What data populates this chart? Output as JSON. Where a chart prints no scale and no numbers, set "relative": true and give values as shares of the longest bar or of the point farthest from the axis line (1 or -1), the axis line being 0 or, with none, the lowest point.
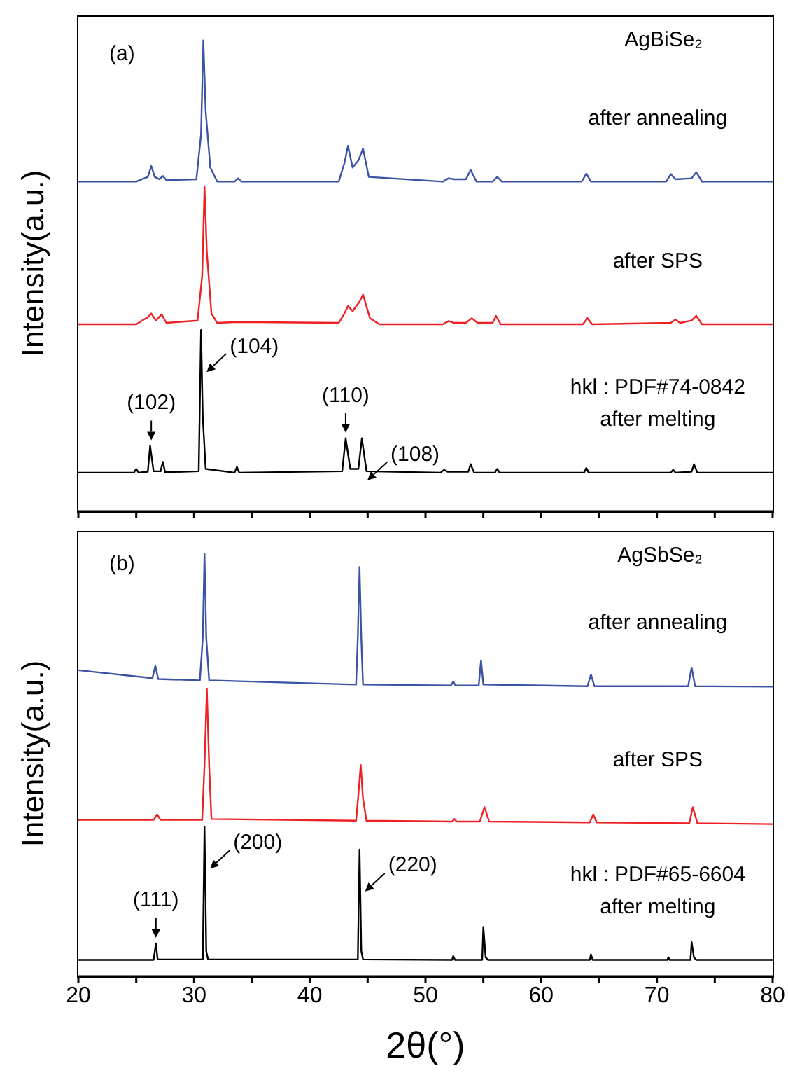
{
  "chart_data": [
    {
      "type": "line",
      "title": "AgBiSe₂",
      "ylabel": "Intensity(a.u.)",
      "relative": true,
      "tick_labels": false,
      "xlim": [
        20,
        80
      ],
      "xticks": [
        20,
        {
          "value": 25,
          "label": null
        },
        30,
        {
          "value": 35,
          "label": null
        },
        40,
        {
          "value": 45,
          "label": null
        },
        50,
        {
          "value": 55,
          "label": null
        },
        60,
        {
          "value": 65,
          "label": null
        },
        70,
        {
          "value": 75,
          "label": null
        },
        80
      ],
      "annotations": [
        "(a)",
        "hkl : PDF#74-0842",
        {
          "text": "(102)",
          "x": 26.3,
          "y": 0.139
        },
        {
          "text": "(104)",
          "x": 30.6,
          "y": 0.385
        },
        {
          "text": "(110)",
          "x": 43.1,
          "y": 0.155
        },
        {
          "text": "(108)",
          "x": 44.5,
          "y": 0.155
        }
      ],
      "series": [
        {
          "name": "after annealing",
          "color": "#3a53a4",
          "x": [
            20,
            25,
            25.5,
            26,
            26.3,
            26.6,
            27,
            27.3,
            27.6,
            30.2,
            30.6,
            30.8,
            31,
            31.4,
            32,
            33.5,
            33.8,
            34.1,
            42.5,
            43,
            43.3,
            43.7,
            44.2,
            44.6,
            45.1,
            51.5,
            52,
            52.5,
            53.5,
            53.9,
            54.4,
            55.8,
            56.2,
            56.6,
            63.5,
            63.9,
            64.3,
            70.8,
            71.2,
            71.6,
            73,
            73.4,
            73.9,
            78.5,
            80
          ],
          "values": [
            0.7,
            0.7,
            0.705,
            0.71,
            0.733,
            0.71,
            0.705,
            0.712,
            0.703,
            0.705,
            0.8,
            1.0,
            0.85,
            0.73,
            0.7,
            0.7,
            0.707,
            0.7,
            0.7,
            0.74,
            0.776,
            0.73,
            0.745,
            0.77,
            0.71,
            0.7,
            0.707,
            0.705,
            0.705,
            0.725,
            0.7,
            0.7,
            0.71,
            0.7,
            0.7,
            0.717,
            0.7,
            0.7,
            0.716,
            0.705,
            0.707,
            0.72,
            0.7,
            0.7,
            0.7
          ]
        },
        {
          "name": "after SPS",
          "color": "#ed2024",
          "x": [
            20,
            25,
            25.5,
            26,
            26.3,
            26.7,
            27.2,
            27.6,
            30.3,
            30.7,
            30.9,
            31.1,
            31.5,
            32,
            33.8,
            42.5,
            43,
            43.3,
            43.7,
            44.3,
            44.6,
            45.2,
            46,
            51.5,
            52,
            52.5,
            53.5,
            54,
            54.5,
            55.8,
            56.1,
            56.5,
            63.6,
            64,
            64.4,
            71.2,
            71.6,
            72,
            73,
            73.4,
            73.9,
            80
          ],
          "values": [
            0.397,
            0.397,
            0.405,
            0.412,
            0.42,
            0.405,
            0.418,
            0.4,
            0.405,
            0.5,
            0.69,
            0.55,
            0.42,
            0.4,
            0.402,
            0.4,
            0.42,
            0.436,
            0.425,
            0.445,
            0.46,
            0.41,
            0.397,
            0.397,
            0.404,
            0.4,
            0.4,
            0.41,
            0.4,
            0.4,
            0.415,
            0.397,
            0.397,
            0.41,
            0.397,
            0.4,
            0.407,
            0.4,
            0.405,
            0.415,
            0.397,
            0.397
          ]
        },
        {
          "name": "after melting",
          "color": "#000000",
          "x": [
            20,
            24.8,
            25,
            25.2,
            26,
            26.2,
            26.5,
            27.1,
            27.3,
            27.5,
            30.4,
            30.6,
            30.75,
            31,
            33.5,
            33.7,
            33.9,
            42.8,
            43.1,
            43.5,
            44.2,
            44.5,
            44.9,
            51.3,
            51.6,
            51.9,
            53.7,
            53.9,
            54.2,
            56,
            56.2,
            56.4,
            63.7,
            63.9,
            64.1,
            71.2,
            71.4,
            71.6,
            73,
            73.2,
            73.5,
            80
          ],
          "values": [
            0.082,
            0.082,
            0.09,
            0.082,
            0.084,
            0.139,
            0.085,
            0.085,
            0.105,
            0.083,
            0.085,
            0.385,
            0.2,
            0.09,
            0.082,
            0.094,
            0.082,
            0.085,
            0.155,
            0.09,
            0.09,
            0.155,
            0.085,
            0.082,
            0.088,
            0.084,
            0.084,
            0.1,
            0.082,
            0.082,
            0.09,
            0.082,
            0.082,
            0.092,
            0.082,
            0.082,
            0.088,
            0.082,
            0.084,
            0.1,
            0.082,
            0.082
          ]
        }
      ]
    },
    {
      "type": "line",
      "title": "AgSbSe₂",
      "ylabel": "Intensity(a.u.)",
      "xlabel": "2θ(°)",
      "relative": true,
      "tick_labels": "x",
      "xlim": [
        20,
        80
      ],
      "xticks": [
        20,
        {
          "value": 25,
          "label": null
        },
        30,
        {
          "value": 35,
          "label": null
        },
        40,
        {
          "value": 45,
          "label": null
        },
        50,
        {
          "value": 55,
          "label": null
        },
        60,
        {
          "value": 65,
          "label": null
        },
        70,
        {
          "value": 75,
          "label": null
        },
        80
      ],
      "annotations": [
        "(b)",
        "hkl : PDF#65-6604",
        {
          "text": "(111)",
          "x": 26.7,
          "y": 0.078
        },
        {
          "text": "(200)",
          "x": 30.9,
          "y": 0.354
        },
        {
          "text": "(220)",
          "x": 44.3,
          "y": 0.3
        }
      ],
      "series": [
        {
          "name": "after annealing",
          "color": "#3a53a4",
          "x": [
            20,
            26.4,
            26.65,
            26.9,
            30.5,
            30.75,
            30.9,
            31.05,
            31.3,
            44,
            44.15,
            44.3,
            44.45,
            44.6,
            52.2,
            52.4,
            52.6,
            54.6,
            54.8,
            55,
            64,
            64.3,
            64.6,
            72.7,
            73,
            73.3,
            80
          ],
          "values": [
            0.724,
            0.705,
            0.734,
            0.703,
            0.7,
            0.8,
            1.0,
            0.8,
            0.7,
            0.69,
            0.8,
            0.968,
            0.8,
            0.69,
            0.688,
            0.697,
            0.688,
            0.688,
            0.747,
            0.69,
            0.686,
            0.714,
            0.686,
            0.686,
            0.73,
            0.686,
            0.685
          ]
        },
        {
          "name": "after SPS",
          "color": "#ed2024",
          "x": [
            20,
            26.5,
            26.8,
            27.1,
            30.7,
            30.9,
            31.1,
            31.3,
            31.5,
            44,
            44.2,
            44.4,
            44.6,
            44.9,
            52.3,
            52.5,
            52.7,
            54.7,
            55.1,
            55.5,
            64.2,
            64.5,
            64.8,
            72.8,
            73.1,
            73.5,
            80
          ],
          "values": [
            0.37,
            0.37,
            0.383,
            0.37,
            0.37,
            0.5,
            0.68,
            0.5,
            0.372,
            0.368,
            0.43,
            0.5,
            0.42,
            0.368,
            0.366,
            0.372,
            0.366,
            0.366,
            0.4,
            0.366,
            0.364,
            0.383,
            0.364,
            0.362,
            0.4,
            0.362,
            0.36
          ]
        },
        {
          "name": "after melting",
          "color": "#000000",
          "x": [
            20,
            26.5,
            26.7,
            26.85,
            30.75,
            30.9,
            31.05,
            31.2,
            44.15,
            44.3,
            44.45,
            44.6,
            52.3,
            52.4,
            52.55,
            54.9,
            55,
            55.2,
            55.4,
            64.2,
            64.3,
            64.45,
            70.9,
            71,
            71.1,
            72.9,
            73,
            73.2,
            73.4,
            80
          ],
          "values": [
            0.039,
            0.039,
            0.078,
            0.04,
            0.04,
            0.354,
            0.06,
            0.04,
            0.04,
            0.3,
            0.06,
            0.04,
            0.039,
            0.048,
            0.039,
            0.039,
            0.117,
            0.045,
            0.039,
            0.039,
            0.052,
            0.039,
            0.039,
            0.045,
            0.039,
            0.039,
            0.081,
            0.045,
            0.039,
            0.039
          ]
        }
      ]
    }
  ]
}
